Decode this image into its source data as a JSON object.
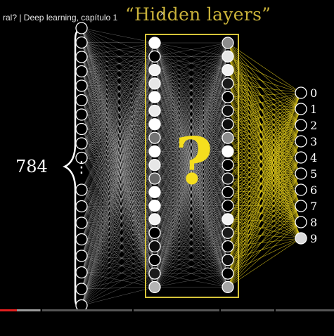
{
  "video_title": "ral? | Deep learning, capítulo 1",
  "close_glyph": "×",
  "hidden_layers_label": "“Hidden layers”",
  "input_count_label": "784",
  "question_mark": "?",
  "output_labels": [
    "0",
    "1",
    "2",
    "3",
    "4",
    "5",
    "6",
    "7",
    "8",
    "9"
  ],
  "network": {
    "input_layer": {
      "top_nodes": 10,
      "bottom_nodes": 8,
      "ellipsis": "⋮"
    },
    "hidden_layer_1": {
      "activations": [
        1.0,
        0.0,
        0.95,
        0.9,
        1.0,
        0.92,
        1.0,
        0.45,
        1.0,
        0.9,
        0.4,
        1.0,
        1.0,
        0.95,
        0.0,
        0.05,
        0.0,
        0.1,
        0.7
      ]
    },
    "hidden_layer_2": {
      "activations": [
        0.55,
        0.9,
        0.95,
        0.1,
        0.0,
        0.05,
        0.05,
        0.55,
        1.0,
        0.0,
        0.1,
        0.0,
        0.0,
        0.95,
        0.1,
        0.0,
        0.05,
        0.0,
        0.65
      ]
    },
    "output_layer": {
      "activations": [
        0.0,
        0.0,
        0.0,
        0.0,
        0.0,
        0.0,
        0.0,
        0.0,
        0.0,
        0.85
      ]
    }
  },
  "player": {
    "progress_fraction": 0.05,
    "buffered_fraction": 0.12
  },
  "colors": {
    "accent_yellow": "#f5de1e",
    "frame_yellow": "#c9b23a",
    "progress_red": "#e21f1f"
  }
}
